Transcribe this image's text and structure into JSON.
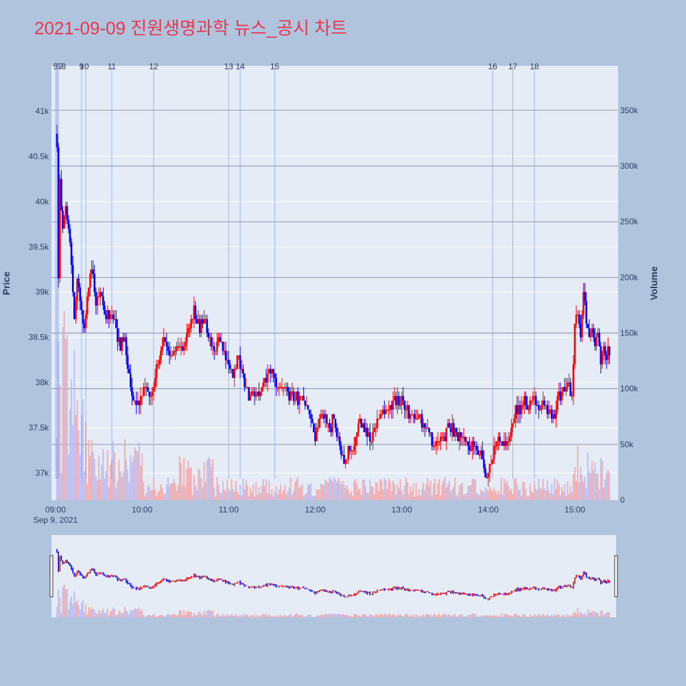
{
  "chart_data": {
    "type": "candlestick",
    "title": "2021-09-09 진원생명과학 뉴스_공시 차트",
    "ylabel": "Price",
    "y2label": "Volume",
    "date_label": "Sep 9, 2021",
    "x_ticks": [
      "09:00",
      "10:00",
      "11:00",
      "12:00",
      "13:00",
      "14:00",
      "15:00"
    ],
    "x_range": [
      "09:00",
      "15:30"
    ],
    "price_ticks": [
      "37k",
      "37.5k",
      "38k",
      "38.5k",
      "39k",
      "39.5k",
      "40k",
      "40.5k",
      "41k"
    ],
    "price_range": [
      36700,
      41500
    ],
    "volume_ticks": [
      "0",
      "50k",
      "100k",
      "150k",
      "200k",
      "250k",
      "300k",
      "350k"
    ],
    "volume_range": [
      0,
      390000
    ],
    "rising_color": "#ff0000",
    "falling_color": "#0000ff",
    "price_path": [
      [
        "09:01",
        40600
      ],
      [
        "09:02",
        39200
      ],
      [
        "09:03",
        40200
      ],
      [
        "09:05",
        39700
      ],
      [
        "09:07",
        39900
      ],
      [
        "09:10",
        39600
      ],
      [
        "09:13",
        38700
      ],
      [
        "09:15",
        39100
      ],
      [
        "09:17",
        38900
      ],
      [
        "09:20",
        38600
      ],
      [
        "09:22",
        39000
      ],
      [
        "09:25",
        39300
      ],
      [
        "09:28",
        38900
      ],
      [
        "09:30",
        39000
      ],
      [
        "09:35",
        38700
      ],
      [
        "09:38",
        38800
      ],
      [
        "09:42",
        38600
      ],
      [
        "09:45",
        38400
      ],
      [
        "09:48",
        38500
      ],
      [
        "09:50",
        38200
      ],
      [
        "09:53",
        37900
      ],
      [
        "09:55",
        37800
      ],
      [
        "09:58",
        37750
      ],
      [
        "10:00",
        37850
      ],
      [
        "10:03",
        38000
      ],
      [
        "10:05",
        37800
      ],
      [
        "10:08",
        38000
      ],
      [
        "10:12",
        38300
      ],
      [
        "10:15",
        38450
      ],
      [
        "10:18",
        38350
      ],
      [
        "10:20",
        38300
      ],
      [
        "10:25",
        38400
      ],
      [
        "10:28",
        38350
      ],
      [
        "10:33",
        38600
      ],
      [
        "10:36",
        38800
      ],
      [
        "10:40",
        38600
      ],
      [
        "10:43",
        38700
      ],
      [
        "10:46",
        38550
      ],
      [
        "10:50",
        38400
      ],
      [
        "10:53",
        38450
      ],
      [
        "10:56",
        38350
      ],
      [
        "11:00",
        38200
      ],
      [
        "11:03",
        38050
      ],
      [
        "11:06",
        38300
      ],
      [
        "11:09",
        38100
      ],
      [
        "11:12",
        37900
      ],
      [
        "11:15",
        37850
      ],
      [
        "11:20",
        37850
      ],
      [
        "11:25",
        38000
      ],
      [
        "11:28",
        38150
      ],
      [
        "11:32",
        38000
      ],
      [
        "11:35",
        37950
      ],
      [
        "11:40",
        37900
      ],
      [
        "11:45",
        37850
      ],
      [
        "11:50",
        37800
      ],
      [
        "11:55",
        37700
      ],
      [
        "11:58",
        37550
      ],
      [
        "12:00",
        37400
      ],
      [
        "12:03",
        37550
      ],
      [
        "12:05",
        37700
      ],
      [
        "12:08",
        37550
      ],
      [
        "12:10",
        37500
      ],
      [
        "12:13",
        37600
      ],
      [
        "12:15",
        37450
      ],
      [
        "12:18",
        37200
      ],
      [
        "12:20",
        37100
      ],
      [
        "12:23",
        37300
      ],
      [
        "12:25",
        37200
      ],
      [
        "12:28",
        37350
      ],
      [
        "12:30",
        37600
      ],
      [
        "12:35",
        37450
      ],
      [
        "12:38",
        37350
      ],
      [
        "12:42",
        37500
      ],
      [
        "12:45",
        37700
      ],
      [
        "12:50",
        37650
      ],
      [
        "12:55",
        37800
      ],
      [
        "13:00",
        37800
      ],
      [
        "13:03",
        37700
      ],
      [
        "13:06",
        37650
      ],
      [
        "13:10",
        37600
      ],
      [
        "13:15",
        37550
      ],
      [
        "13:18",
        37450
      ],
      [
        "13:22",
        37300
      ],
      [
        "13:26",
        37350
      ],
      [
        "13:30",
        37400
      ],
      [
        "13:33",
        37550
      ],
      [
        "13:36",
        37450
      ],
      [
        "13:40",
        37400
      ],
      [
        "13:44",
        37350
      ],
      [
        "13:48",
        37300
      ],
      [
        "13:52",
        37250
      ],
      [
        "13:55",
        37200
      ],
      [
        "13:58",
        36950
      ],
      [
        "14:00",
        37050
      ],
      [
        "14:03",
        37200
      ],
      [
        "14:06",
        37350
      ],
      [
        "14:10",
        37350
      ],
      [
        "14:13",
        37300
      ],
      [
        "14:16",
        37450
      ],
      [
        "14:19",
        37750
      ],
      [
        "14:22",
        37650
      ],
      [
        "14:25",
        37800
      ],
      [
        "14:28",
        37700
      ],
      [
        "14:32",
        37850
      ],
      [
        "14:35",
        37700
      ],
      [
        "14:38",
        37750
      ],
      [
        "14:42",
        37650
      ],
      [
        "14:45",
        37600
      ],
      [
        "14:48",
        37800
      ],
      [
        "14:52",
        37900
      ],
      [
        "14:55",
        38000
      ],
      [
        "14:58",
        37850
      ],
      [
        "15:00",
        38600
      ],
      [
        "15:02",
        38800
      ],
      [
        "15:04",
        38500
      ],
      [
        "15:06",
        38950
      ],
      [
        "15:08",
        38700
      ],
      [
        "15:10",
        38500
      ],
      [
        "15:12",
        38600
      ],
      [
        "15:14",
        38400
      ],
      [
        "15:16",
        38500
      ],
      [
        "15:18",
        38250
      ],
      [
        "15:20",
        38350
      ],
      [
        "15:22",
        38300
      ],
      [
        "15:24",
        38350
      ]
    ],
    "event_markers": [
      {
        "label": "5",
        "time": "09:00"
      },
      {
        "label": "6",
        "time": "09:01"
      },
      {
        "label": "7",
        "time": "09:01"
      },
      {
        "label": "8",
        "time": "09:02"
      },
      {
        "label": "9",
        "time": "09:18"
      },
      {
        "label": "10",
        "time": "09:21"
      },
      {
        "label": "11",
        "time": "09:39"
      },
      {
        "label": "12",
        "time": "10:08"
      },
      {
        "label": "13",
        "time": "11:00"
      },
      {
        "label": "14",
        "time": "11:08"
      },
      {
        "label": "15",
        "time": "11:32"
      },
      {
        "label": "16",
        "time": "14:03"
      },
      {
        "label": "17",
        "time": "14:17"
      },
      {
        "label": "18",
        "time": "14:32"
      }
    ]
  }
}
